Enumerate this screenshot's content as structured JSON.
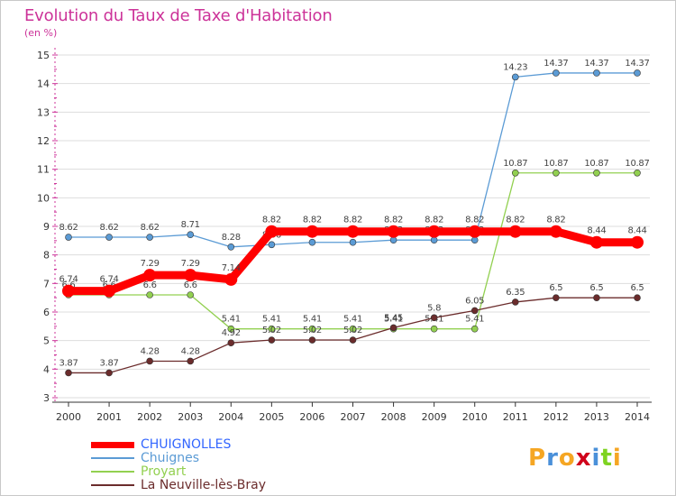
{
  "header": {
    "title": "Evolution du Taux de Taxe d'Habitation",
    "subtitle": "(en %)"
  },
  "logo": {
    "text": "Proxiti"
  },
  "colors": {
    "title": "#cc3399",
    "axis": "#333333",
    "axis_ticks": "#cc3399",
    "grid": "#dddddd"
  },
  "chart_data": {
    "type": "line",
    "title": "Evolution du Taux de Taxe d'Habitation",
    "subtitle": "(en %)",
    "xlabel": "",
    "ylabel": "",
    "x": [
      "2000",
      "2001",
      "2002",
      "2003",
      "2004",
      "2005",
      "2006",
      "2007",
      "2008",
      "2009",
      "2010",
      "2011",
      "2012",
      "2013",
      "2014"
    ],
    "yticks": [
      "3",
      "4",
      "5",
      "6",
      "7",
      "8",
      "9",
      "10",
      "11",
      "12",
      "13",
      "14",
      "15"
    ],
    "ylim": [
      3,
      15
    ],
    "grid": "horizontal",
    "legend_position": "bottom-left",
    "series": [
      {
        "name": "CHUIGNOLLES",
        "color": "#ff0000",
        "emphasis": true,
        "values": [
          6.74,
          6.74,
          7.29,
          7.29,
          7.14,
          8.82,
          8.82,
          8.82,
          8.82,
          8.82,
          8.82,
          8.82,
          8.82,
          8.44,
          8.44
        ],
        "labels": [
          "6.74",
          "6.74",
          "7.29",
          "7.29",
          "7.14",
          "8.82",
          "8.82",
          "8.82",
          "8.82",
          "8.82",
          "8.82",
          "8.82",
          "8.82",
          "8.44",
          "8.44"
        ]
      },
      {
        "name": "Chuignes",
        "color": "#5b9bd5",
        "values": [
          8.62,
          8.62,
          8.62,
          8.71,
          8.28,
          8.36,
          8.44,
          8.44,
          8.52,
          8.52,
          8.52,
          14.23,
          14.37,
          14.37,
          14.37
        ],
        "labels": [
          "8.62",
          "8.62",
          "8.62",
          "8.71",
          "8.28",
          "8.36",
          "8.44",
          "8.44",
          "8.52",
          "8.52",
          "8.52",
          "14.23",
          "14.37",
          "14.37",
          "14.37"
        ]
      },
      {
        "name": "Proyart",
        "color": "#92d050",
        "values": [
          6.6,
          6.6,
          6.6,
          6.6,
          5.41,
          5.41,
          5.41,
          5.41,
          5.41,
          5.41,
          5.41,
          10.87,
          10.87,
          10.87,
          10.87
        ],
        "labels": [
          "6.6",
          "6.6",
          "6.6",
          "6.6",
          "5.41",
          "5.41",
          "5.41",
          "5.41",
          "5.41",
          "5.41",
          "5.41",
          "10.87",
          "10.87",
          "10.87",
          "10.87"
        ]
      },
      {
        "name": "La Neuville-lès-Bray",
        "color": "#6b2c2c",
        "values": [
          3.87,
          3.87,
          4.28,
          4.28,
          4.92,
          5.02,
          5.02,
          5.02,
          5.45,
          5.8,
          6.05,
          6.35,
          6.5,
          6.5,
          6.5
        ],
        "labels": [
          "3.87",
          "3.87",
          "4.28",
          "4.28",
          "4.92",
          "5.02",
          "5.02",
          "5.02",
          "5.45",
          "5.8",
          "6.05",
          "6.35",
          "6.5",
          "6.5",
          "6.5"
        ]
      }
    ]
  }
}
